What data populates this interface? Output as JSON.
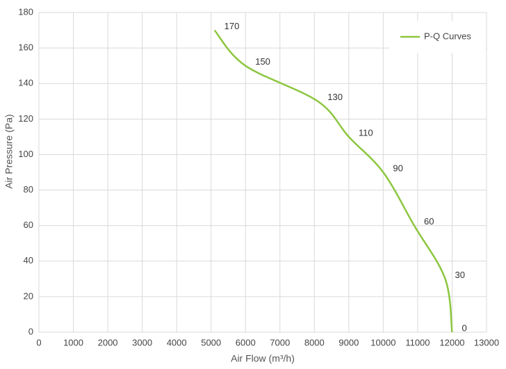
{
  "chart_data": {
    "type": "line",
    "x_label": "Air Flow  (m³/h)",
    "y_label": "Air Pressure  (Pa)",
    "x": [
      5100,
      6000,
      8100,
      9000,
      10000,
      10900,
      11800,
      12000
    ],
    "series": [
      {
        "name": "P-Q Curves",
        "color": "#8cc63f",
        "values": [
          170,
          150,
          130,
          110,
          90,
          60,
          30,
          0
        ]
      }
    ],
    "xlim": [
      0,
      13000
    ],
    "xticks": [
      0,
      1000,
      2000,
      3000,
      4000,
      5000,
      6000,
      7000,
      8000,
      9000,
      10000,
      11000,
      12000,
      13000
    ],
    "ylim": [
      0,
      180
    ],
    "yticks": [
      0,
      20,
      40,
      60,
      80,
      100,
      120,
      140,
      160,
      180
    ],
    "grid": true,
    "legend": "upper right"
  }
}
